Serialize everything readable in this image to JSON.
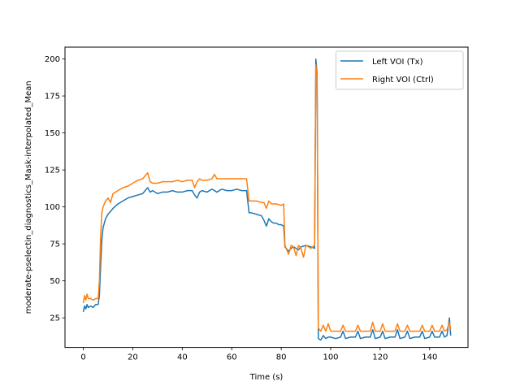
{
  "chart_data": {
    "type": "line",
    "title": "",
    "xlabel": "Time (s)",
    "ylabel": "moderate-pselectin_diagnostics_Mask-interpolated_Mean",
    "xlim": [
      -7.4,
      155.5
    ],
    "ylim": [
      5,
      208
    ],
    "xticks": [
      0,
      20,
      40,
      60,
      80,
      100,
      120,
      140
    ],
    "yticks": [
      25,
      50,
      75,
      100,
      125,
      150,
      175,
      200
    ],
    "grid": false,
    "legend_position": "upper-right",
    "series": [
      {
        "name": "Left VOI (Tx)",
        "color": "#1f77b4",
        "points": [
          [
            0,
            29
          ],
          [
            0.5,
            33
          ],
          [
            1,
            31
          ],
          [
            1.5,
            34
          ],
          [
            2,
            32
          ],
          [
            3,
            33
          ],
          [
            4,
            32
          ],
          [
            5,
            34
          ],
          [
            6,
            34
          ],
          [
            6.5,
            40
          ],
          [
            7,
            60
          ],
          [
            7.5,
            78
          ],
          [
            8,
            86
          ],
          [
            9,
            92
          ],
          [
            10,
            95
          ],
          [
            12,
            99
          ],
          [
            14,
            102
          ],
          [
            16,
            104
          ],
          [
            18,
            106
          ],
          [
            20,
            107
          ],
          [
            22,
            108
          ],
          [
            24,
            109
          ],
          [
            25,
            111
          ],
          [
            26,
            113
          ],
          [
            27,
            110
          ],
          [
            28,
            111
          ],
          [
            30,
            109
          ],
          [
            32,
            110
          ],
          [
            34,
            110
          ],
          [
            36,
            111
          ],
          [
            38,
            110
          ],
          [
            40,
            110
          ],
          [
            42,
            111
          ],
          [
            44,
            111
          ],
          [
            45,
            108
          ],
          [
            46,
            106
          ],
          [
            47,
            110
          ],
          [
            48,
            111
          ],
          [
            50,
            110
          ],
          [
            52,
            112
          ],
          [
            54,
            110
          ],
          [
            56,
            112
          ],
          [
            58,
            111
          ],
          [
            60,
            111
          ],
          [
            62,
            112
          ],
          [
            64,
            111
          ],
          [
            66,
            111
          ],
          [
            67,
            96
          ],
          [
            68,
            96
          ],
          [
            70,
            95
          ],
          [
            72,
            94
          ],
          [
            73,
            91
          ],
          [
            74,
            87
          ],
          [
            75,
            92
          ],
          [
            76,
            90
          ],
          [
            77,
            89
          ],
          [
            78,
            89
          ],
          [
            79,
            88
          ],
          [
            80,
            88
          ],
          [
            81,
            87
          ],
          [
            81.5,
            73
          ],
          [
            82,
            72
          ],
          [
            83,
            70
          ],
          [
            84,
            72
          ],
          [
            85,
            73
          ],
          [
            86,
            72
          ],
          [
            87,
            71
          ],
          [
            88,
            73
          ],
          [
            90,
            74
          ],
          [
            92,
            73
          ],
          [
            93.5,
            72
          ],
          [
            94,
            200
          ],
          [
            94.5,
            190
          ],
          [
            95,
            11
          ],
          [
            96,
            10
          ],
          [
            97,
            13
          ],
          [
            98,
            11
          ],
          [
            99,
            12
          ],
          [
            100,
            12
          ],
          [
            102,
            11
          ],
          [
            104,
            12
          ],
          [
            105,
            16
          ],
          [
            106,
            11
          ],
          [
            108,
            12
          ],
          [
            110,
            12
          ],
          [
            111,
            16
          ],
          [
            112,
            11
          ],
          [
            114,
            12
          ],
          [
            116,
            12
          ],
          [
            117,
            17
          ],
          [
            118,
            11
          ],
          [
            120,
            12
          ],
          [
            121,
            16
          ],
          [
            122,
            11
          ],
          [
            124,
            12
          ],
          [
            126,
            12
          ],
          [
            127,
            17
          ],
          [
            128,
            11
          ],
          [
            130,
            12
          ],
          [
            131,
            16
          ],
          [
            132,
            11
          ],
          [
            134,
            12
          ],
          [
            136,
            12
          ],
          [
            137,
            16
          ],
          [
            138,
            11
          ],
          [
            140,
            12
          ],
          [
            141,
            16
          ],
          [
            142,
            12
          ],
          [
            144,
            12
          ],
          [
            145,
            16
          ],
          [
            146,
            12
          ],
          [
            147,
            13
          ],
          [
            148,
            25
          ],
          [
            148.5,
            13
          ]
        ]
      },
      {
        "name": "Right VOI (Ctrl)",
        "color": "#ff7f0e",
        "points": [
          [
            0,
            35
          ],
          [
            0.5,
            40
          ],
          [
            1,
            37
          ],
          [
            1.5,
            41
          ],
          [
            2,
            38
          ],
          [
            3,
            38
          ],
          [
            4,
            37
          ],
          [
            5,
            38
          ],
          [
            6,
            38
          ],
          [
            6.5,
            50
          ],
          [
            7,
            80
          ],
          [
            7.5,
            96
          ],
          [
            8,
            100
          ],
          [
            9,
            104
          ],
          [
            10,
            106
          ],
          [
            11,
            103
          ],
          [
            12,
            109
          ],
          [
            14,
            111
          ],
          [
            16,
            113
          ],
          [
            18,
            114
          ],
          [
            20,
            116
          ],
          [
            22,
            118
          ],
          [
            24,
            119
          ],
          [
            25,
            121
          ],
          [
            26,
            123
          ],
          [
            27,
            117
          ],
          [
            28,
            116
          ],
          [
            30,
            116
          ],
          [
            32,
            117
          ],
          [
            34,
            117
          ],
          [
            36,
            117
          ],
          [
            38,
            118
          ],
          [
            40,
            117
          ],
          [
            42,
            118
          ],
          [
            44,
            118
          ],
          [
            45,
            113
          ],
          [
            46,
            117
          ],
          [
            47,
            119
          ],
          [
            48,
            118
          ],
          [
            50,
            118
          ],
          [
            52,
            119
          ],
          [
            53,
            122
          ],
          [
            54,
            119
          ],
          [
            56,
            119
          ],
          [
            58,
            119
          ],
          [
            60,
            119
          ],
          [
            62,
            119
          ],
          [
            64,
            119
          ],
          [
            66,
            119
          ],
          [
            67,
            104
          ],
          [
            68,
            104
          ],
          [
            70,
            104
          ],
          [
            72,
            103
          ],
          [
            73,
            103
          ],
          [
            74,
            99
          ],
          [
            75,
            104
          ],
          [
            76,
            102
          ],
          [
            78,
            102
          ],
          [
            80,
            101
          ],
          [
            81,
            102
          ],
          [
            81.5,
            74
          ],
          [
            82,
            72
          ],
          [
            83,
            68
          ],
          [
            84,
            74
          ],
          [
            85,
            73
          ],
          [
            86,
            67
          ],
          [
            87,
            74
          ],
          [
            88,
            72
          ],
          [
            89,
            66
          ],
          [
            90,
            74
          ],
          [
            91,
            73
          ],
          [
            92,
            72
          ],
          [
            93.5,
            74
          ],
          [
            94,
            196
          ],
          [
            94.5,
            188
          ],
          [
            95,
            18
          ],
          [
            96,
            16
          ],
          [
            97,
            20
          ],
          [
            98,
            16
          ],
          [
            99,
            21
          ],
          [
            100,
            16
          ],
          [
            102,
            16
          ],
          [
            104,
            16
          ],
          [
            105,
            20
          ],
          [
            106,
            16
          ],
          [
            108,
            16
          ],
          [
            110,
            16
          ],
          [
            111,
            20
          ],
          [
            112,
            16
          ],
          [
            114,
            16
          ],
          [
            116,
            16
          ],
          [
            117,
            22
          ],
          [
            118,
            16
          ],
          [
            120,
            16
          ],
          [
            121,
            21
          ],
          [
            122,
            16
          ],
          [
            124,
            16
          ],
          [
            126,
            16
          ],
          [
            127,
            21
          ],
          [
            128,
            16
          ],
          [
            130,
            16
          ],
          [
            131,
            20
          ],
          [
            132,
            16
          ],
          [
            134,
            16
          ],
          [
            136,
            16
          ],
          [
            137,
            20
          ],
          [
            138,
            16
          ],
          [
            140,
            16
          ],
          [
            141,
            20
          ],
          [
            142,
            16
          ],
          [
            144,
            16
          ],
          [
            145,
            20
          ],
          [
            146,
            16
          ],
          [
            147,
            17
          ],
          [
            148,
            22
          ],
          [
            148.5,
            17
          ]
        ]
      }
    ]
  }
}
